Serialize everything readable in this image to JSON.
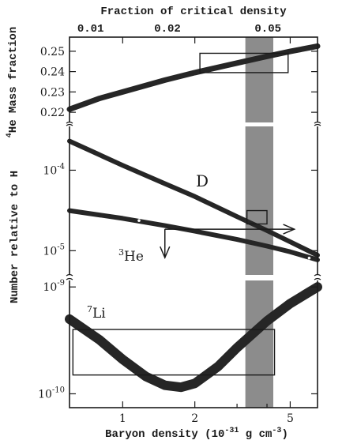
{
  "chart_data": {
    "type": "line",
    "title": "",
    "top_axis": {
      "label": "Fraction of critical density",
      "ticks": [
        {
          "value": 0.01,
          "label": "0.01"
        },
        {
          "value": 0.02,
          "label": "0.02"
        },
        {
          "value": 0.05,
          "label": "0.05"
        }
      ]
    },
    "x_axis": {
      "label_main": "Baryon density (10",
      "label_exp1": "-31",
      "label_mid": " g cm",
      "label_exp2": "-3",
      "label_end": ")",
      "scale": "log",
      "range": [
        0.6,
        6.5
      ],
      "ticks": [
        {
          "value": 1,
          "label": "1"
        },
        {
          "value": 2,
          "label": "2"
        },
        {
          "value": 5,
          "label": "5"
        }
      ]
    },
    "panels": [
      {
        "name": "helium-4",
        "ylabel_sup": "4",
        "ylabel": "He Mass fraction",
        "yscale": "linear",
        "ylim": [
          0.215,
          0.255
        ],
        "ticks": [
          {
            "value": 0.22,
            "label": "0.22"
          },
          {
            "value": 0.23,
            "label": "0.23"
          },
          {
            "value": 0.24,
            "label": "0.24"
          },
          {
            "value": 0.25,
            "label": "0.25"
          }
        ],
        "series": [
          {
            "x": [
              0.6,
              0.8,
              1.0,
              1.5,
              2.0,
              3.0,
              4.0,
              5.0,
              6.5
            ],
            "y": [
              0.2215,
              0.2268,
              0.23,
              0.2358,
              0.2395,
              0.2442,
              0.2475,
              0.2499,
              0.2525
            ]
          }
        ],
        "boxes": [
          {
            "x": [
              2.1,
              4.9
            ],
            "y": [
              0.2395,
              0.249
            ]
          }
        ]
      },
      {
        "name": "deuterium-helium-3",
        "ylabel": "Number relative to H",
        "yscale": "log",
        "ylim": [
          5e-06,
          0.00035
        ],
        "ticks": [
          {
            "value": 0.0001,
            "base": "10",
            "exp": "-4"
          },
          {
            "value": 1e-05,
            "base": "10",
            "exp": "-5"
          }
        ],
        "series": [
          {
            "label": "D",
            "x": [
              0.6,
              1.0,
              1.5,
              2.0,
              3.0,
              4.0,
              5.0,
              6.5
            ],
            "y": [
              0.00023,
              0.000115,
              6.8e-05,
              4.7e-05,
              2.65e-05,
              1.78e-05,
              1.29e-05,
              8.8e-06
            ]
          },
          {
            "label_sup": "3",
            "label": "He",
            "x": [
              0.6,
              1.0,
              1.5,
              2.0,
              3.0,
              4.0,
              5.0,
              6.5
            ],
            "y": [
              3.15e-05,
              2.52e-05,
              2.05e-05,
              1.75e-05,
              1.38e-05,
              1.14e-05,
              9.7e-06,
              7.7e-06
            ]
          }
        ],
        "boxes": [
          {
            "x": [
              3.3,
              4.0
            ],
            "y": [
              2.15e-05,
              3.15e-05
            ]
          }
        ],
        "arrows": [
          {
            "from": [
              1.5,
              1.85e-05
            ],
            "to": [
              5.2,
              1.85e-05
            ]
          },
          {
            "from": [
              1.5,
              1.85e-05
            ],
            "to": [
              1.5,
              8.2e-06
            ]
          }
        ]
      },
      {
        "name": "lithium-7",
        "ylabel": "",
        "label_sup": "7",
        "label": "Li",
        "yscale": "log",
        "ylim": [
          8.5e-11,
          1.15e-09
        ],
        "ticks": [
          {
            "value": 1e-09,
            "base": "10",
            "exp": "-9"
          },
          {
            "value": 1e-10,
            "base": "10",
            "exp": "-10"
          }
        ],
        "series": [
          {
            "x": [
              0.6,
              0.8,
              1.0,
              1.25,
              1.5,
              1.75,
              2.0,
              2.5,
              3.0,
              4.0,
              5.0,
              6.5
            ],
            "y": [
              5e-10,
              3.2e-10,
              2.1e-10,
              1.45e-10,
              1.2e-10,
              1.15e-10,
              1.25e-10,
              1.8e-10,
              2.7e-10,
              4.8e-10,
              7e-10,
              1e-09
            ]
          }
        ],
        "boxes": [
          {
            "x": [
              0.62,
              4.3
            ],
            "y": [
              1.5e-10,
              4e-10
            ]
          }
        ]
      }
    ],
    "band": {
      "x": [
        3.25,
        4.25
      ],
      "color": "#8c8c8c"
    },
    "colors": {
      "curve": "#262626",
      "frame": "#1a1a1a",
      "band": "#8c8c8c"
    }
  }
}
